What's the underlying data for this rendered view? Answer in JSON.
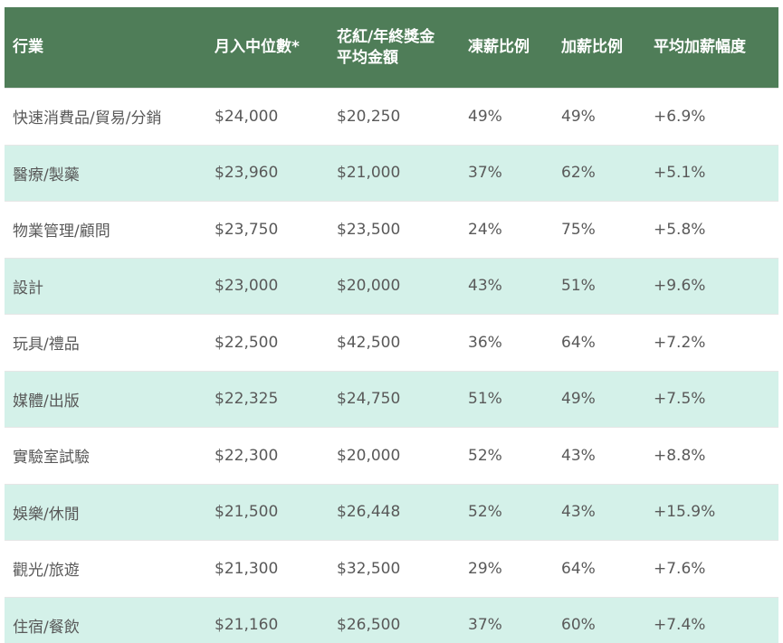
{
  "theme": {
    "header_bg": "#4f7d58",
    "header_text": "#ffffff",
    "row_bg": "#ffffff",
    "row_alt_bg": "#d4f1e9",
    "body_text": "#595959",
    "divider": "#e6e6e6"
  },
  "table": {
    "columns": [
      {
        "id": "industry",
        "label": "行業"
      },
      {
        "id": "median_income",
        "label": "月入中位數*"
      },
      {
        "id": "bonus_avg",
        "label": "花紅/年終獎金\n平均金額"
      },
      {
        "id": "freeze_ratio",
        "label": "凍薪比例"
      },
      {
        "id": "raise_ratio",
        "label": "加薪比例"
      },
      {
        "id": "avg_raise",
        "label": "平均加薪幅度"
      }
    ],
    "rows": [
      {
        "industry": "快速消費品/貿易/分銷",
        "median_income": "$24,000",
        "bonus_avg": "$20,250",
        "freeze_ratio": "49%",
        "raise_ratio": "49%",
        "avg_raise": "+6.9%"
      },
      {
        "industry": "醫療/製藥",
        "median_income": "$23,960",
        "bonus_avg": "$21,000",
        "freeze_ratio": "37%",
        "raise_ratio": "62%",
        "avg_raise": "+5.1%"
      },
      {
        "industry": "物業管理/顧問",
        "median_income": "$23,750",
        "bonus_avg": "$23,500",
        "freeze_ratio": "24%",
        "raise_ratio": "75%",
        "avg_raise": "+5.8%"
      },
      {
        "industry": "設計",
        "median_income": "$23,000",
        "bonus_avg": "$20,000",
        "freeze_ratio": "43%",
        "raise_ratio": "51%",
        "avg_raise": "+9.6%"
      },
      {
        "industry": "玩具/禮品",
        "median_income": "$22,500",
        "bonus_avg": "$42,500",
        "freeze_ratio": "36%",
        "raise_ratio": "64%",
        "avg_raise": "+7.2%"
      },
      {
        "industry": "媒體/出版",
        "median_income": "$22,325",
        "bonus_avg": "$24,750",
        "freeze_ratio": "51%",
        "raise_ratio": "49%",
        "avg_raise": "+7.5%"
      },
      {
        "industry": "實驗室試驗",
        "median_income": "$22,300",
        "bonus_avg": "$20,000",
        "freeze_ratio": "52%",
        "raise_ratio": "43%",
        "avg_raise": "+8.8%"
      },
      {
        "industry": "娛樂/休閒",
        "median_income": "$21,500",
        "bonus_avg": "$26,448",
        "freeze_ratio": "52%",
        "raise_ratio": "43%",
        "avg_raise": "+15.9%"
      },
      {
        "industry": "觀光/旅遊",
        "median_income": "$21,300",
        "bonus_avg": "$32,500",
        "freeze_ratio": "29%",
        "raise_ratio": "64%",
        "avg_raise": "+7.6%"
      },
      {
        "industry": "住宿/餐飲",
        "median_income": "$21,160",
        "bonus_avg": "$26,500",
        "freeze_ratio": "37%",
        "raise_ratio": "60%",
        "avg_raise": "+7.4%"
      }
    ]
  },
  "chart_data": {
    "type": "table",
    "title": "",
    "columns": [
      "行業",
      "月入中位數*",
      "花紅/年終獎金平均金額",
      "凍薪比例",
      "加薪比例",
      "平均加薪幅度"
    ],
    "rows": [
      [
        "快速消費品/貿易/分銷",
        "$24,000",
        "$20,250",
        "49%",
        "49%",
        "+6.9%"
      ],
      [
        "醫療/製藥",
        "$23,960",
        "$21,000",
        "37%",
        "62%",
        "+5.1%"
      ],
      [
        "物業管理/顧問",
        "$23,750",
        "$23,500",
        "24%",
        "75%",
        "+5.8%"
      ],
      [
        "設計",
        "$23,000",
        "$20,000",
        "43%",
        "51%",
        "+9.6%"
      ],
      [
        "玩具/禮品",
        "$22,500",
        "$42,500",
        "36%",
        "64%",
        "+7.2%"
      ],
      [
        "媒體/出版",
        "$22,325",
        "$24,750",
        "51%",
        "49%",
        "+7.5%"
      ],
      [
        "實驗室試驗",
        "$22,300",
        "$20,000",
        "52%",
        "43%",
        "+8.8%"
      ],
      [
        "娛樂/休閒",
        "$21,500",
        "$26,448",
        "52%",
        "43%",
        "+15.9%"
      ],
      [
        "觀光/旅遊",
        "$21,300",
        "$32,500",
        "29%",
        "64%",
        "+7.6%"
      ],
      [
        "住宿/餐飲",
        "$21,160",
        "$26,500",
        "37%",
        "60%",
        "+7.4%"
      ]
    ]
  }
}
